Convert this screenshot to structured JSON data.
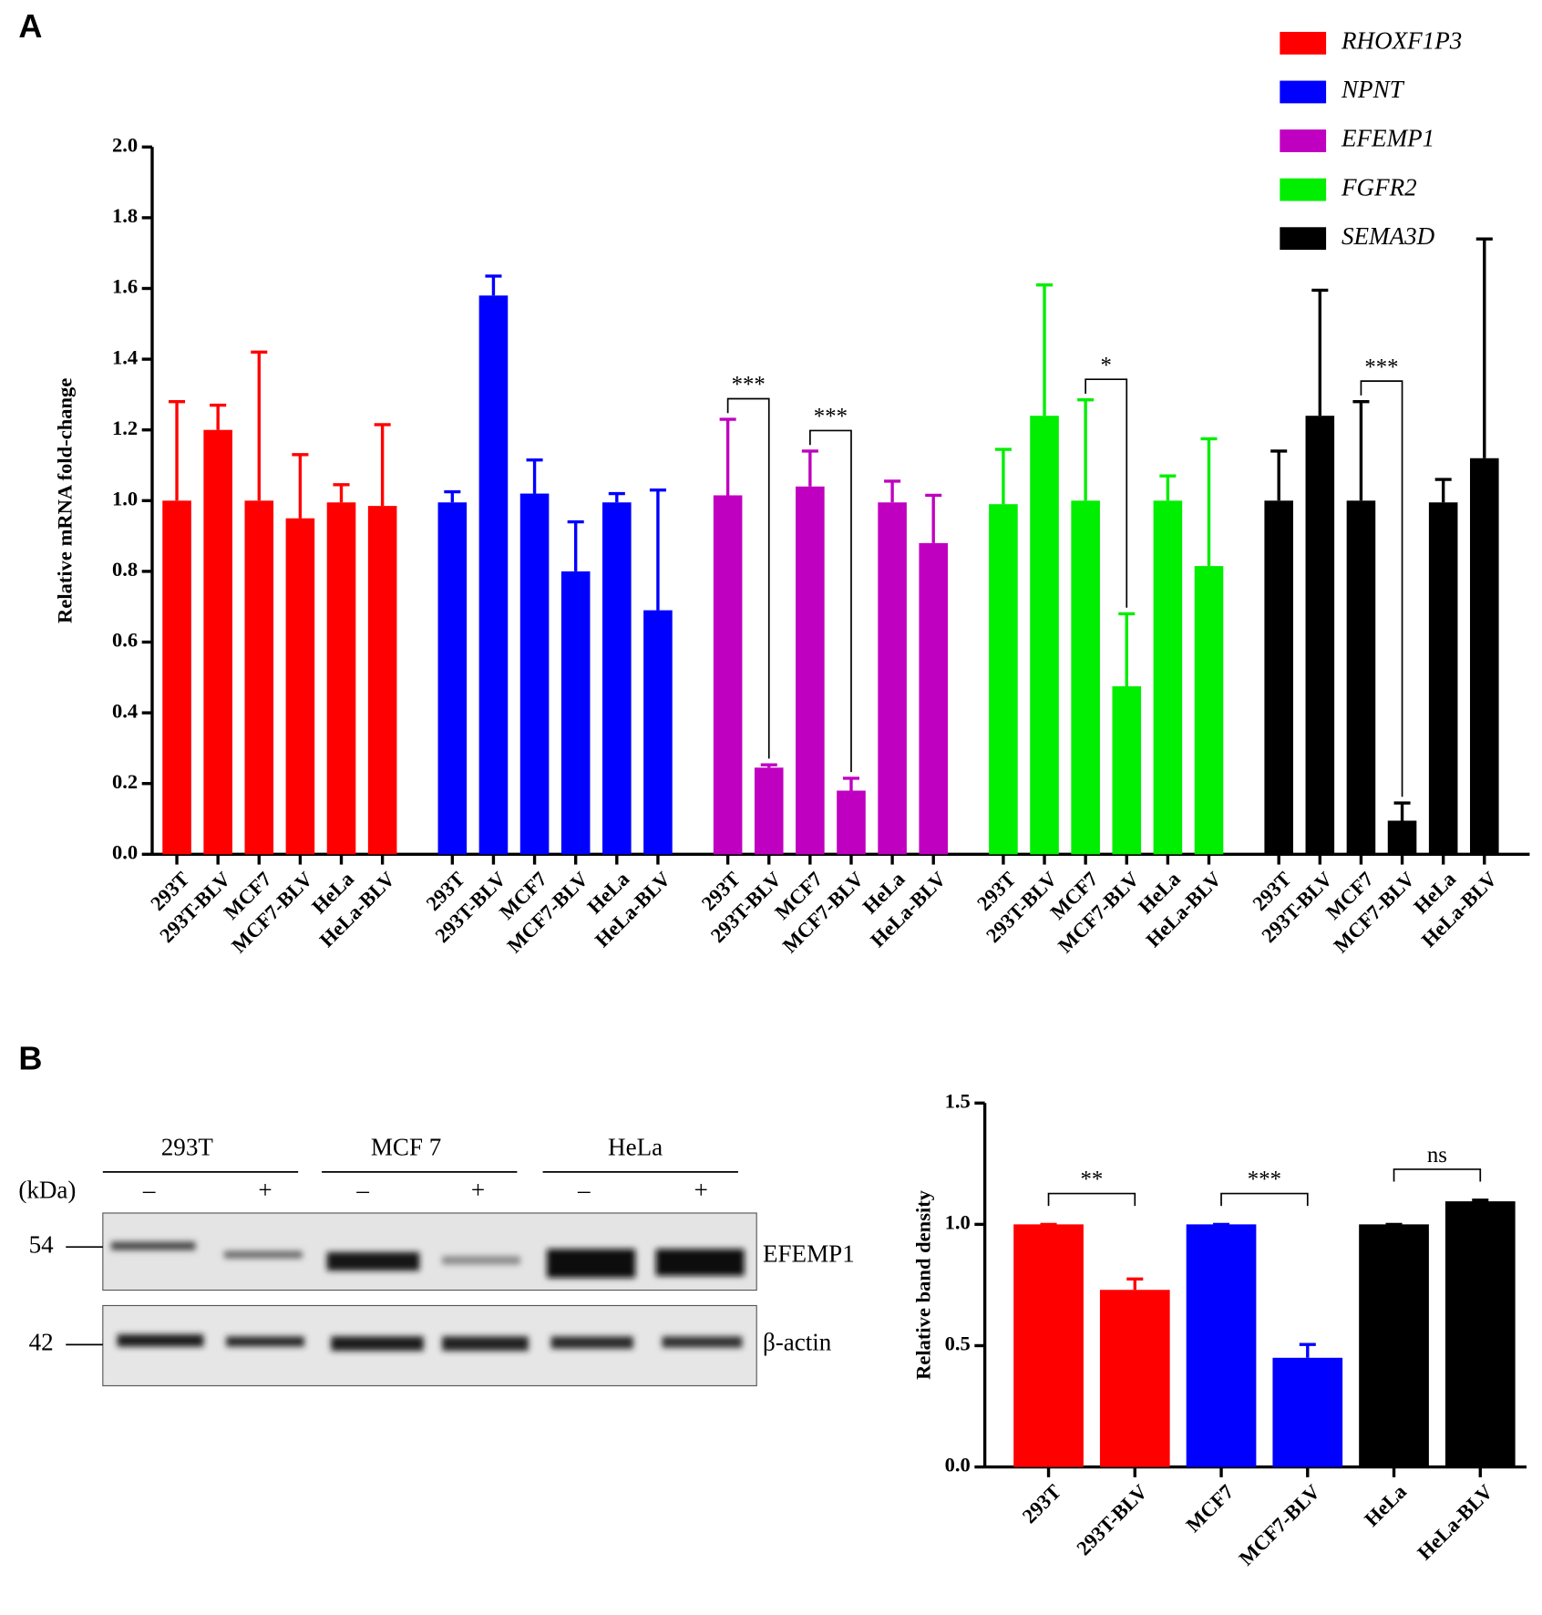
{
  "panel_labels": [
    "A",
    "B"
  ],
  "chart_data": [
    {
      "type": "bar",
      "categories": [
        "293T",
        "293T-BLV",
        "MCF7",
        "MCF7-BLV",
        "HeLa",
        "HeLa-BLV"
      ],
      "y_label": "Relative mRNA fold-change",
      "ylim": [
        0,
        2
      ],
      "yticks": [
        {
          "value": 0,
          "label": "0.0"
        },
        {
          "value": 0.2,
          "label": "0.2"
        },
        {
          "value": 0.4,
          "label": "0.4"
        },
        {
          "value": 0.6,
          "label": "0.6"
        },
        {
          "value": 0.8,
          "label": "0.8"
        },
        {
          "value": 1,
          "label": "1.0"
        },
        {
          "value": 1.2,
          "label": "1.2"
        },
        {
          "value": 1.4,
          "label": "1.4"
        },
        {
          "value": 1.6,
          "label": "1.6"
        },
        {
          "value": 1.8,
          "label": "1.8"
        },
        {
          "value": 2,
          "label": "2.0"
        }
      ],
      "series": [
        {
          "name": "RHOXF1P3",
          "color": "#ff0000",
          "values": [
            1.0,
            1.2,
            1.0,
            0.95,
            0.995,
            0.985
          ],
          "errors": [
            0.28,
            0.07,
            0.42,
            0.18,
            0.05,
            0.23
          ]
        },
        {
          "name": "NPNT",
          "color": "#0000ff",
          "values": [
            0.995,
            1.58,
            1.02,
            0.8,
            0.995,
            0.69
          ],
          "errors": [
            0.03,
            0.055,
            0.095,
            0.14,
            0.025,
            0.34
          ]
        },
        {
          "name": "EFEMP1",
          "color": "#c000c0",
          "values": [
            1.015,
            0.245,
            1.04,
            0.18,
            0.995,
            0.88
          ],
          "errors": [
            0.215,
            0.008,
            0.1,
            0.035,
            0.06,
            0.135
          ]
        },
        {
          "name": "FGFR2",
          "color": "#00ee00",
          "values": [
            0.99,
            1.24,
            1.0,
            0.475,
            1.0,
            0.815
          ],
          "errors": [
            0.155,
            0.37,
            0.285,
            0.205,
            0.07,
            0.36
          ]
        },
        {
          "name": "SEMA3D",
          "color": "#000000",
          "values": [
            1.0,
            1.24,
            1.0,
            0.095,
            0.995,
            1.12
          ],
          "errors": [
            0.14,
            0.355,
            0.28,
            0.05,
            0.065,
            0.62
          ]
        }
      ],
      "annotations": [
        {
          "text": "***",
          "series": 2,
          "from": 0,
          "to": 1
        },
        {
          "text": "***",
          "series": 2,
          "from": 2,
          "to": 3
        },
        {
          "text": "*",
          "series": 3,
          "from": 2,
          "to": 3
        },
        {
          "text": "***",
          "series": 4,
          "from": 2,
          "to": 3
        }
      ]
    },
    {
      "type": "bar",
      "categories": [
        "293T",
        "293T-BLV",
        "MCF7",
        "MCF7-BLV",
        "HeLa",
        "HeLa-BLV"
      ],
      "y_label": "Relative band density",
      "ylim": [
        0,
        1.5
      ],
      "yticks": [
        {
          "value": 0,
          "label": "0.0"
        },
        {
          "value": 0.5,
          "label": "0.5"
        },
        {
          "value": 1,
          "label": "1.0"
        },
        {
          "value": 1.5,
          "label": "1.5"
        }
      ],
      "values": [
        1.0,
        0.73,
        1.0,
        0.45,
        1.0,
        1.095
      ],
      "errors": [
        0,
        0.045,
        0,
        0.055,
        0,
        0.005
      ],
      "colors": [
        "#ff0000",
        "#ff0000",
        "#0000ff",
        "#0000ff",
        "#000000",
        "#000000"
      ],
      "annotations": [
        {
          "text": "**",
          "from": 0,
          "to": 1
        },
        {
          "text": "***",
          "from": 2,
          "to": 3
        },
        {
          "text": "ns",
          "from": 4,
          "to": 5
        }
      ]
    }
  ],
  "blot": {
    "groups": [
      "293T",
      "MCF 7",
      "HeLa"
    ],
    "unit": "(kDa)",
    "lanes": [
      "–",
      "+",
      "–",
      "+",
      "–",
      "+"
    ],
    "markers": [
      54,
      42
    ],
    "proteins": [
      "EFEMP1",
      "β-actin"
    ]
  }
}
